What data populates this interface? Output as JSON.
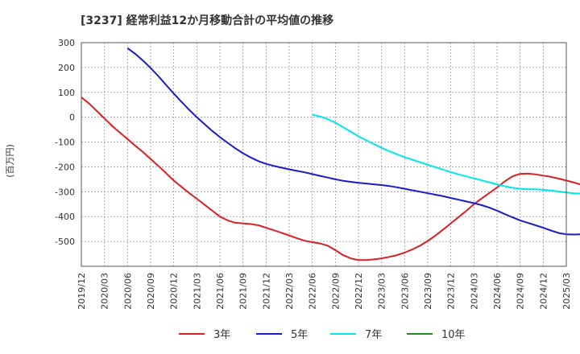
{
  "chart_data": {
    "type": "line",
    "title": "[3237]  経常利益12か月移動合計の平均値の推移",
    "ylabel": "(百万円)",
    "xlabel": "",
    "ylim": [
      -600,
      300
    ],
    "yticks": [
      300,
      200,
      100,
      0,
      -100,
      -200,
      -300,
      -400,
      -500
    ],
    "xticks": [
      "2019/12",
      "2020/03",
      "2020/06",
      "2020/09",
      "2020/12",
      "2021/03",
      "2021/06",
      "2021/09",
      "2021/12",
      "2022/03",
      "2022/06",
      "2022/09",
      "2022/12",
      "2023/03",
      "2023/06",
      "2023/09",
      "2023/12",
      "2024/03",
      "2024/06",
      "2024/09",
      "2024/12",
      "2025/03"
    ],
    "grid": true,
    "legend_position": "bottom",
    "series": [
      {
        "name": "3年",
        "color": "#dd1f1f",
        "start_index": 0,
        "values": [
          80,
          55,
          25,
          -5,
          -35,
          -62,
          -88,
          -115,
          -140,
          -168,
          -196,
          -225,
          -255,
          -280,
          -305,
          -328,
          -352,
          -376,
          -400,
          -415,
          -425,
          -427,
          -430,
          -435,
          -445,
          -455,
          -465,
          -476,
          -487,
          -497,
          -503,
          -508,
          -517,
          -535,
          -555,
          -568,
          -575,
          -575,
          -572,
          -568,
          -562,
          -555,
          -545,
          -532,
          -517,
          -498,
          -476,
          -452,
          -427,
          -402,
          -377,
          -350,
          -327,
          -305,
          -283,
          -258,
          -238,
          -228,
          -227,
          -230,
          -235,
          -240,
          -247,
          -255,
          -263,
          -272,
          -280
        ]
      },
      {
        "name": "5年",
        "color": "#1a1acc",
        "start_index": 6,
        "values": [
          278,
          255,
          228,
          198,
          165,
          130,
          95,
          62,
          30,
          0,
          -28,
          -55,
          -80,
          -103,
          -125,
          -145,
          -162,
          -177,
          -188,
          -196,
          -203,
          -210,
          -216,
          -222,
          -229,
          -236,
          -243,
          -250,
          -256,
          -260,
          -264,
          -267,
          -270,
          -273,
          -277,
          -282,
          -288,
          -294,
          -300,
          -306,
          -312,
          -318,
          -325,
          -332,
          -339,
          -346,
          -354,
          -364,
          -376,
          -390,
          -403,
          -415,
          -425,
          -435,
          -445,
          -456,
          -466,
          -471,
          -472,
          -471,
          -468,
          -463
        ]
      },
      {
        "name": "7年",
        "color": "#00e5ee",
        "start_index": 30,
        "values": [
          10,
          3,
          -8,
          -22,
          -40,
          -58,
          -77,
          -93,
          -108,
          -123,
          -137,
          -149,
          -161,
          -171,
          -181,
          -191,
          -201,
          -211,
          -221,
          -230,
          -238,
          -246,
          -254,
          -262,
          -270,
          -278,
          -284,
          -288,
          -290,
          -290,
          -292,
          -295,
          -299,
          -303,
          -306,
          -308
        ]
      },
      {
        "name": "10年",
        "color": "#228b22",
        "start_index": 0,
        "values": []
      }
    ]
  }
}
